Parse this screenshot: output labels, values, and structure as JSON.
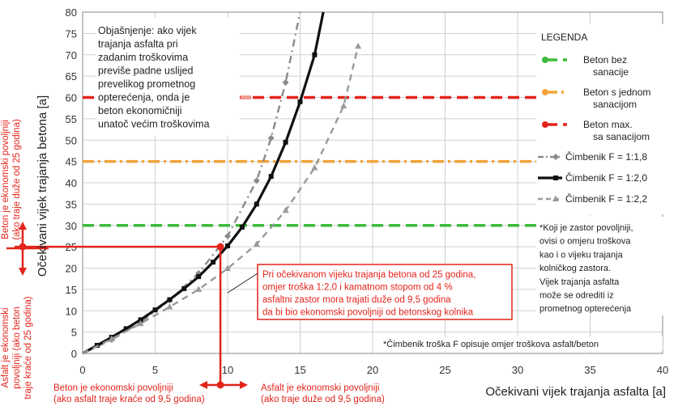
{
  "chart_data": {
    "type": "line",
    "xlabel": "Očekivani vijek trajanja asfalta [a]",
    "ylabel": "Očekivani vijek trajanja betona [a]",
    "xlim": [
      0,
      40
    ],
    "ylim": [
      0,
      80
    ],
    "x_ticks": [
      0,
      5,
      10,
      15,
      20,
      25,
      30,
      35,
      40
    ],
    "y_ticks": [
      0,
      5,
      10,
      15,
      20,
      25,
      30,
      35,
      40,
      45,
      50,
      55,
      60,
      65,
      70,
      75,
      80
    ],
    "grid": true,
    "legend_position": "right",
    "legend_title": "LEGENDA",
    "horizontal_lines": [
      {
        "name_lines": [
          "Beton bez",
          "sanacije"
        ],
        "y": 30,
        "color": "#3dba3d",
        "style": "dashed"
      },
      {
        "name_lines": [
          "Beton s jednom",
          "sanacijom"
        ],
        "y": 45,
        "color": "#f2a33a",
        "style": "dashdot"
      },
      {
        "name_lines": [
          "Beton max.",
          "sa sanacijom"
        ],
        "y": 60,
        "color": "#e3241b",
        "style": "dashed"
      }
    ],
    "series": [
      {
        "name": "Čimbenik F = 1:1,8",
        "color": "#8a8a8a",
        "style": "dashdot",
        "marker": "diamond",
        "x": [
          0,
          2,
          4,
          6,
          8,
          10,
          12,
          13,
          14,
          15
        ],
        "y": [
          0,
          3.2,
          7.3,
          12.5,
          18.8,
          27.5,
          40.5,
          50.5,
          63.5,
          80
        ]
      },
      {
        "name": "Čimbenik F = 1:2,0",
        "color": "#111111",
        "style": "solid",
        "marker": "square",
        "x": [
          0,
          1,
          2,
          3,
          4,
          5,
          6,
          7,
          8,
          9,
          10,
          11,
          12,
          13,
          14,
          15,
          16,
          16.6
        ],
        "y": [
          0,
          1.9,
          3.8,
          5.8,
          7.9,
          10.2,
          12.6,
          15.2,
          18.0,
          21.4,
          25.2,
          29.6,
          35.0,
          41.5,
          49.5,
          59.0,
          70.0,
          80
        ]
      },
      {
        "name": "Čimbenik F = 1:2,2",
        "color": "#9a9a9a",
        "style": "dashed",
        "marker": "triangle",
        "x": [
          0,
          2,
          4,
          6,
          8,
          10,
          12,
          14,
          16,
          18,
          19
        ],
        "y": [
          0,
          3.4,
          7.0,
          10.9,
          15.0,
          19.9,
          25.6,
          33.5,
          43.5,
          58.0,
          72.0
        ]
      }
    ],
    "marked_point": {
      "x": 9.5,
      "y": 25
    },
    "annotations": {
      "explanation": [
        "Objašnjenje: ako vijek",
        "trajanja asfalta pri",
        "zadanim troškovima",
        "previše padne uslijed",
        "prevelikog prometnog",
        "opterećenja, onda je",
        "beton ekonomičniji",
        "unatoč većim troškovima"
      ],
      "red_box": [
        "Pri očekivanom vijeku trajanja betona od 25 godina,",
        "omjer troška 1:2,0 i kamatnom stopom od 4 %",
        "asfaltni zastor mora trajati duže od 9,5 godina",
        "da bi bio ekonomski povoljniji od betonskog kolnika"
      ],
      "koji_note": [
        "*Koji je zastor povoljniji,",
        "ovisi o omjeru troškova",
        "kao i o vijeku trajanja",
        "kolničkog zastora.",
        "Vijek trajanja asfalta",
        "može se odrediti iz",
        "prometnog opterećenja"
      ],
      "footnote": "*Čimbenik troška F  opisuje omjer troškova asfalt/beton",
      "beton_up": [
        "Beton je ekonomski povoljniji",
        "(ako traje duže od 25 godina)"
      ],
      "asfalt_down": [
        "Asfalt je ekonomski",
        "povoljniji (ako beton",
        "traje kraće od 25 godina)"
      ],
      "beton_left": [
        "Beton je ekonomski povoljniji",
        "(ako asfalt traje kraće od 9,5 godina)"
      ],
      "asfalt_right": [
        "Asfalt je ekonomski povoljniji",
        "(ako traje duže od 9,5 godina)"
      ]
    }
  }
}
